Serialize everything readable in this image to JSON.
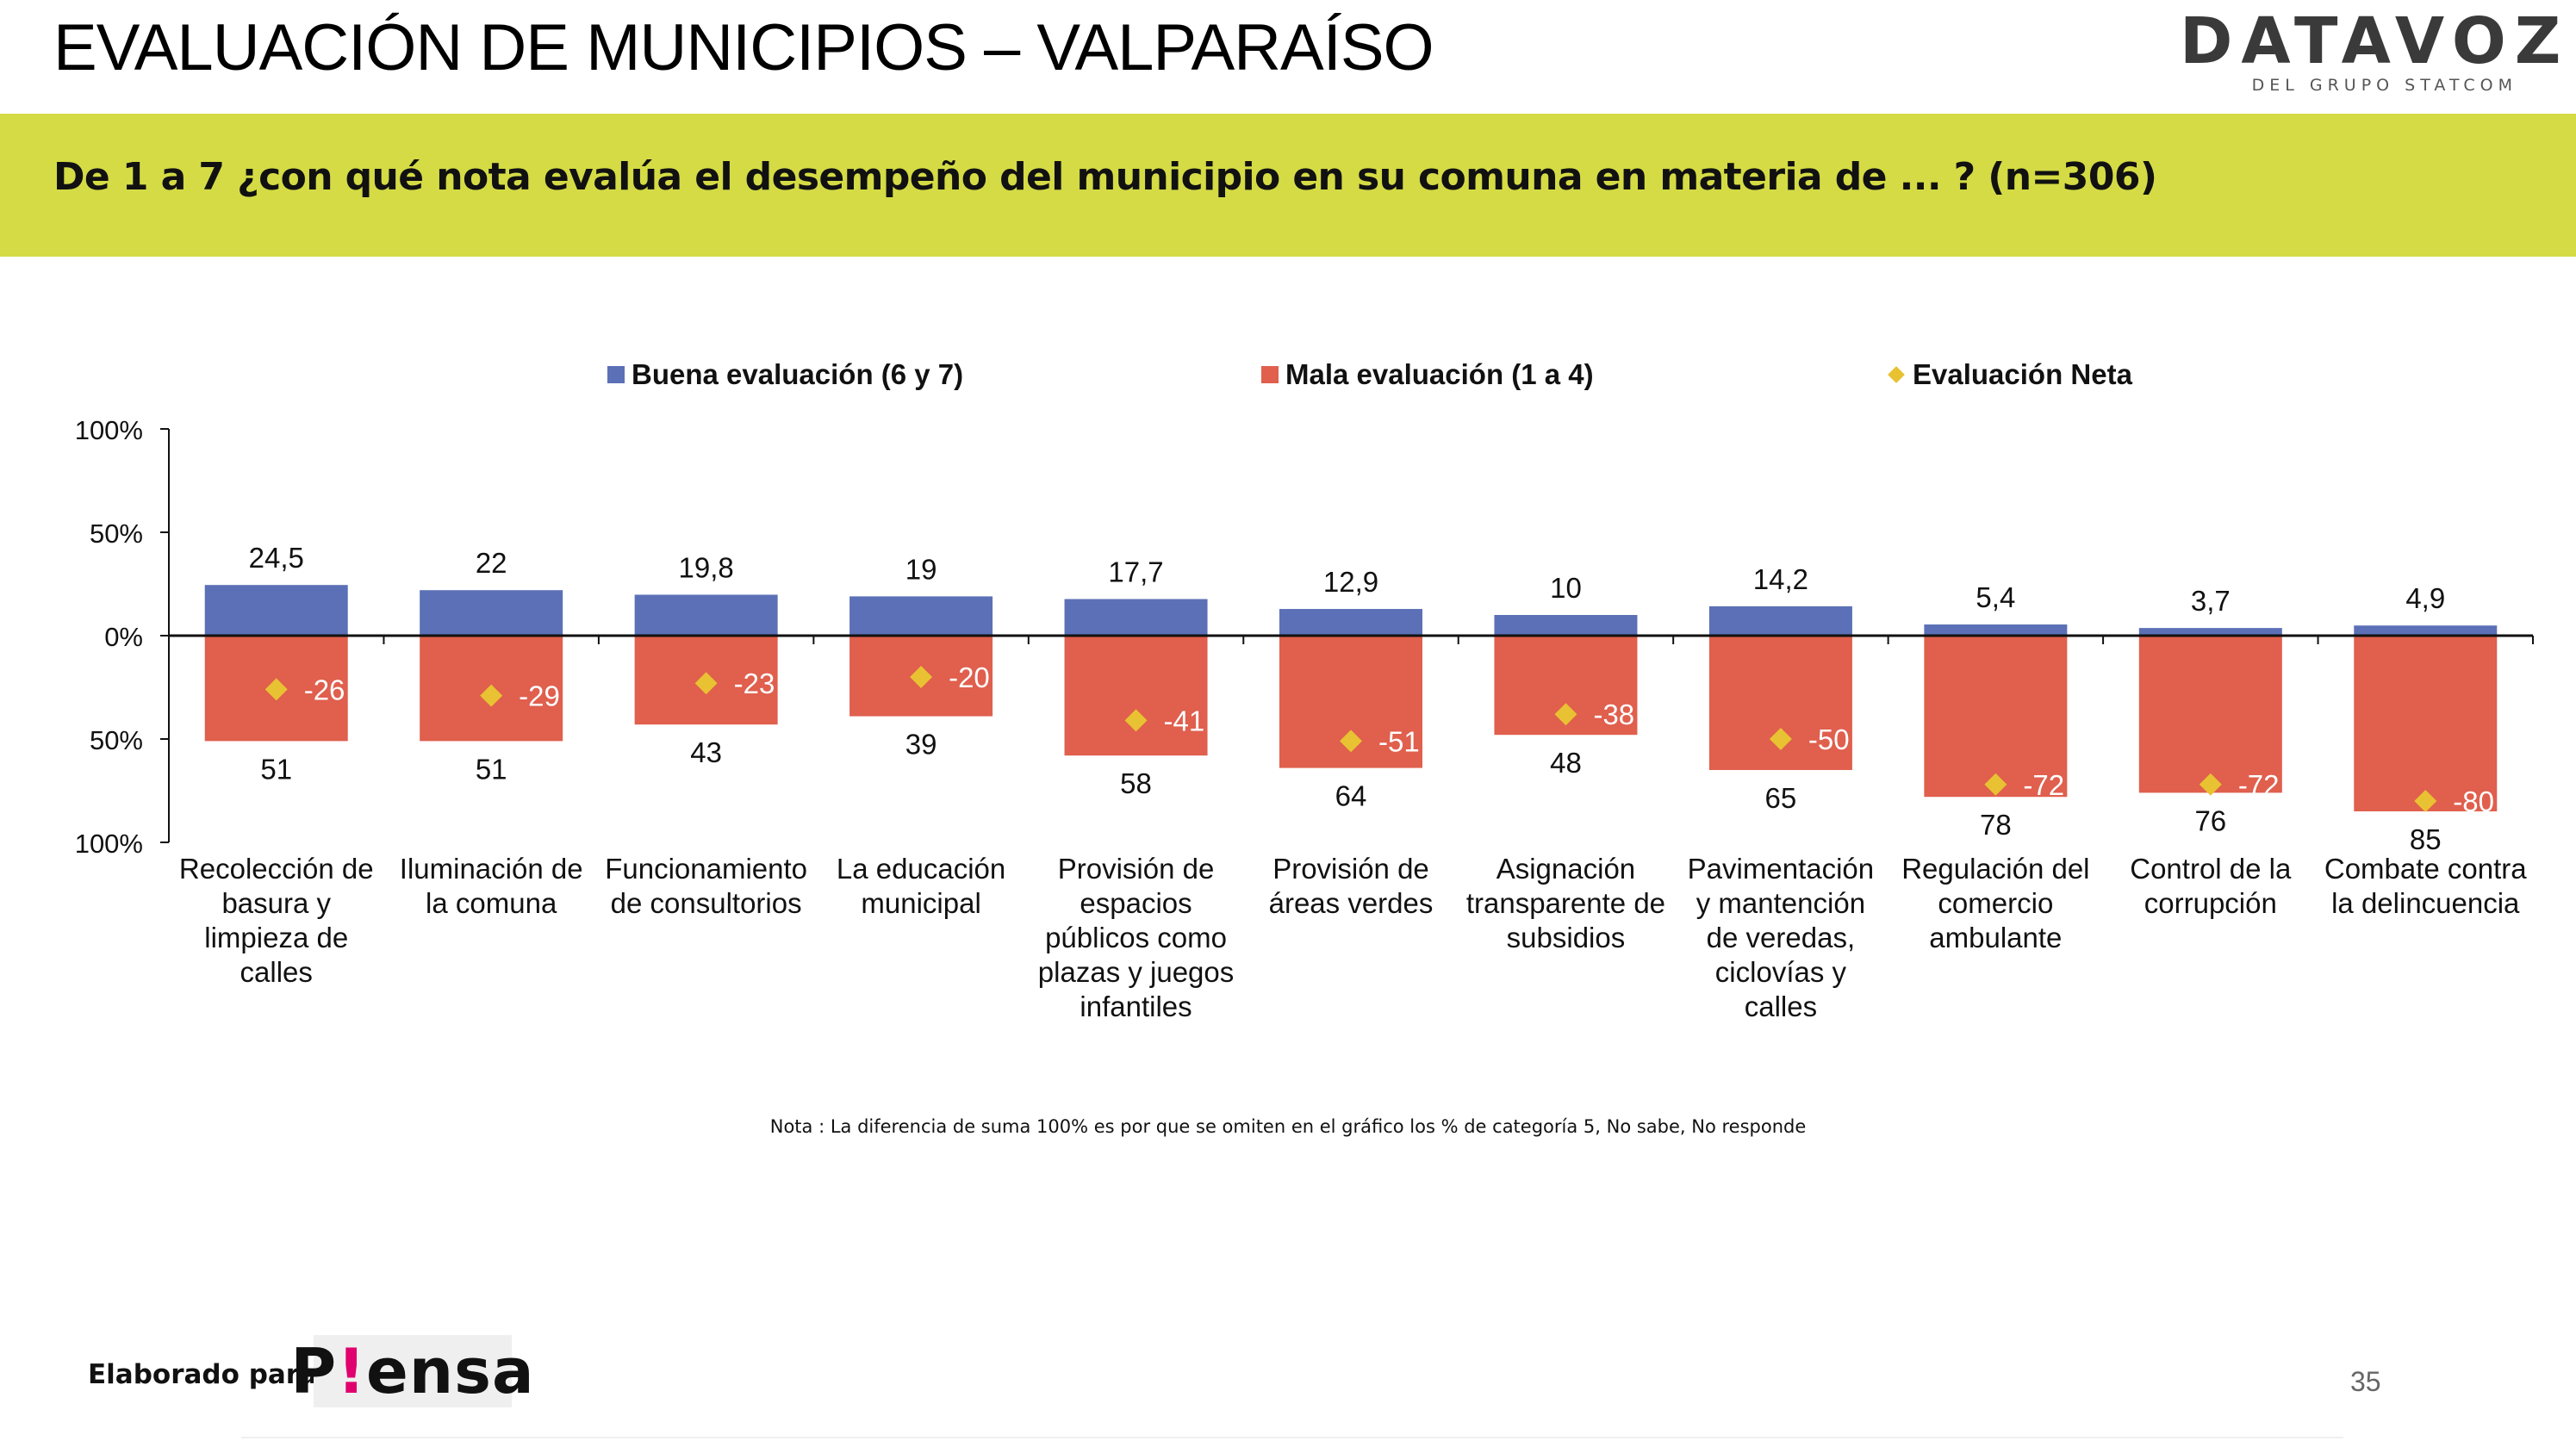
{
  "header": {
    "title": "EVALUACIÓN DE MUNICIPIOS – VALPARAÍSO",
    "brand_name": "DATAVOZ",
    "brand_subtitle": "DEL GRUPO STATCOM"
  },
  "question": "De 1 a 7 ¿con qué nota evalúa el desempeño del municipio en su comuna en materia de ... ? (n=306)",
  "colors": {
    "band": "#d4db45",
    "good": "#5b70b6",
    "bad": "#e05f4d",
    "net": "#e8c232"
  },
  "chart_data": {
    "type": "bar",
    "title": "",
    "xlabel": "",
    "ylabel": "",
    "ylim": [
      -100,
      100
    ],
    "y_ticks": [
      {
        "value": 100,
        "label": "100%"
      },
      {
        "value": 50,
        "label": "50%"
      },
      {
        "value": 0,
        "label": "0%"
      },
      {
        "value": -50,
        "label": "50%"
      },
      {
        "value": -100,
        "label": "100%"
      }
    ],
    "legend_position": "top",
    "grid": false,
    "categories": [
      [
        "Recolección de",
        "basura y",
        "limpieza de",
        "calles"
      ],
      [
        "Iluminación de",
        "la comuna"
      ],
      [
        "Funcionamiento",
        "de consultorios"
      ],
      [
        "La educación",
        "municipal"
      ],
      [
        "Provisión de",
        "espacios",
        "públicos como",
        "plazas y juegos",
        "infantiles"
      ],
      [
        "Provisión de",
        "áreas verdes"
      ],
      [
        "Asignación",
        "transparente de",
        "subsidios"
      ],
      [
        "Pavimentación",
        "y mantención",
        "de veredas,",
        "ciclovías y",
        "calles"
      ],
      [
        "Regulación del",
        "comercio",
        "ambulante"
      ],
      [
        "Control de la",
        "corrupción"
      ],
      [
        "Combate contra",
        "la delincuencia"
      ]
    ],
    "series": [
      {
        "name": "Buena evaluación (6 y 7)",
        "kind": "bar-positive",
        "values": [
          24.5,
          22,
          19.8,
          19,
          17.7,
          12.9,
          10,
          14.2,
          5.4,
          3.7,
          4.9
        ],
        "labels": [
          "24,5",
          "22",
          "19,8",
          "19",
          "17,7",
          "12,9",
          "10",
          "14,2",
          "5,4",
          "3,7",
          "4,9"
        ]
      },
      {
        "name": "Mala evaluación (1 a 4)",
        "kind": "bar-negative",
        "values": [
          51,
          51,
          43,
          39,
          58,
          64,
          48,
          65,
          78,
          76,
          85
        ],
        "labels": [
          "51",
          "51",
          "43",
          "39",
          "58",
          "64",
          "48",
          "65",
          "78",
          "76",
          "85"
        ]
      },
      {
        "name": "Evaluación Neta",
        "kind": "marker",
        "values": [
          -26,
          -29,
          -23,
          -20,
          -41,
          -51,
          -38,
          -50,
          -72,
          -72,
          -80
        ],
        "labels": [
          "-26",
          "-29",
          "-23",
          "-20",
          "-41",
          "-51",
          "-38",
          "-50",
          "-72",
          "-72",
          "-80"
        ]
      }
    ]
  },
  "note": "Nota : La diferencia de suma 100% es por que se omiten en el gráfico los % de categoría 5, No sabe, No responde",
  "footer": {
    "label": "Elaborado para:",
    "client_logo": {
      "pre": "P",
      "mark": "!",
      "post": "ensa"
    },
    "page_number": "35"
  }
}
